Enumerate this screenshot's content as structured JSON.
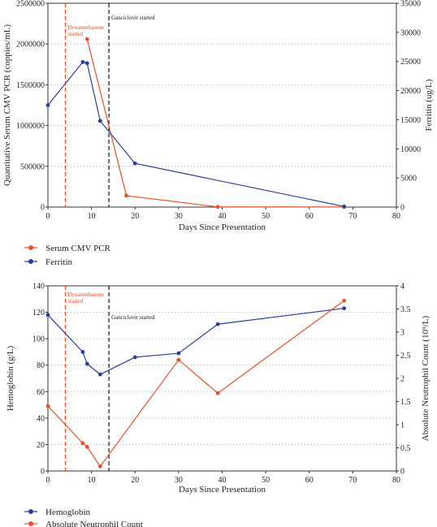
{
  "colors": {
    "red": "#e8502a",
    "blue": "#2b3d9c",
    "black": "#111111"
  },
  "chart_data": [
    {
      "type": "line",
      "xlabel": "Days Since Presentation",
      "ylabel": "Quantitative Serum CMV PCR (coppies/mL)",
      "y2label": "Ferritin (ug/L)",
      "xlim": [
        0,
        80
      ],
      "ylim": [
        0,
        2500000
      ],
      "y2lim": [
        0,
        35000
      ],
      "x_ticks": [
        0,
        10,
        20,
        30,
        40,
        50,
        60,
        70,
        80
      ],
      "y_ticks": [
        0,
        500000,
        1000000,
        1500000,
        2000000,
        2500000
      ],
      "y2_ticks": [
        0,
        5000,
        10000,
        15000,
        20000,
        25000,
        30000,
        35000
      ],
      "grid": "horizontal dotted",
      "legend_position": "below",
      "series": [
        {
          "name": "Serum CMV PCR",
          "color": "#e8502a",
          "axis": "left",
          "x": [
            9,
            18,
            39,
            68
          ],
          "y": [
            2060000,
            140000,
            2000,
            1000
          ]
        },
        {
          "name": "Ferritin",
          "color": "#2b3d9c",
          "axis": "right",
          "x": [
            0,
            8,
            9,
            12,
            20,
            68
          ],
          "y": [
            17500,
            24900,
            24700,
            14800,
            7500,
            100
          ]
        }
      ],
      "annotations": [
        {
          "x": 4,
          "color": "#e8502a",
          "lines": [
            "Dexamethasone",
            "started"
          ]
        },
        {
          "x": 14,
          "color": "#111111",
          "lines": [
            "Ganciclovir started"
          ]
        }
      ]
    },
    {
      "type": "line",
      "xlabel": "Days Since Presentation",
      "ylabel": "Hemoglobin (g/L)",
      "y2label": "Absolute Neutrophil Count (10⁹/L)",
      "xlim": [
        0,
        80
      ],
      "ylim": [
        0,
        140
      ],
      "y2lim": [
        0,
        4
      ],
      "x_ticks": [
        0,
        10,
        20,
        30,
        40,
        50,
        60,
        70,
        80
      ],
      "y_ticks": [
        0,
        20,
        40,
        60,
        80,
        100,
        120,
        140
      ],
      "y2_ticks": [
        0,
        0.5,
        1,
        1.5,
        2,
        2.5,
        3,
        3.5,
        4
      ],
      "grid": "horizontal dotted",
      "legend_position": "below",
      "series": [
        {
          "name": "Hemoglobin",
          "color": "#2b3d9c",
          "axis": "left",
          "x": [
            0,
            8,
            9,
            12,
            20,
            30,
            39,
            68
          ],
          "y": [
            118,
            90,
            81,
            73,
            86,
            89,
            111,
            123
          ]
        },
        {
          "name": "Absolute Neutrophil Count",
          "color": "#e8502a",
          "axis": "right",
          "x": [
            0,
            8,
            9,
            12,
            30,
            39,
            68
          ],
          "y": [
            1.4,
            0.6,
            0.52,
            0.1,
            2.4,
            1.68,
            3.68
          ]
        }
      ],
      "annotations": [
        {
          "x": 4,
          "color": "#e8502a",
          "lines": [
            "Dexamethasone",
            "started"
          ]
        },
        {
          "x": 14,
          "color": "#111111",
          "lines": [
            "Ganciclovir started"
          ]
        }
      ]
    }
  ]
}
